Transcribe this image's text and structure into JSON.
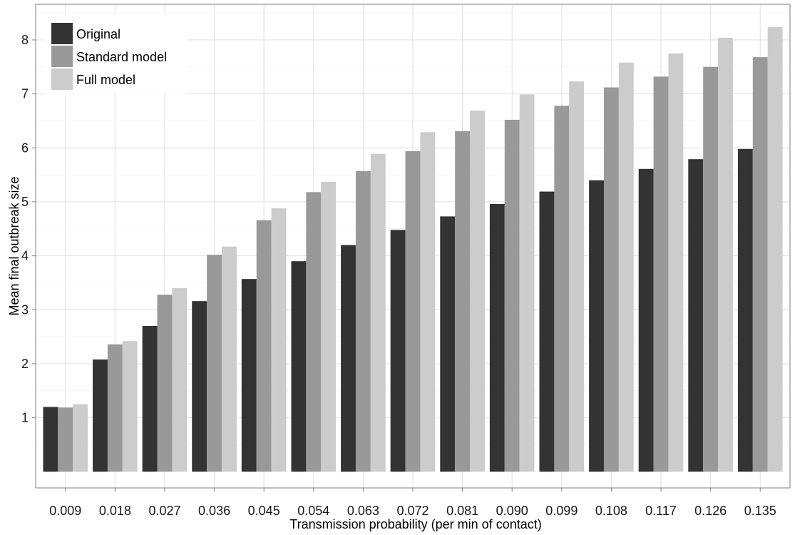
{
  "chart_data": {
    "type": "bar",
    "title": "",
    "xlabel": "Transmission probability (per min of contact)",
    "ylabel": "Mean final outbreak size",
    "categories": [
      "0.009",
      "0.018",
      "0.027",
      "0.036",
      "0.045",
      "0.054",
      "0.063",
      "0.072",
      "0.081",
      "0.090",
      "0.099",
      "0.108",
      "0.117",
      "0.126",
      "0.135"
    ],
    "series": [
      {
        "name": "Original",
        "color": "#333333",
        "values": [
          1.2,
          2.08,
          2.7,
          3.16,
          3.57,
          3.9,
          4.2,
          4.48,
          4.73,
          4.96,
          5.19,
          5.4,
          5.61,
          5.79,
          5.98
        ]
      },
      {
        "name": "Standard model",
        "color": "#999999",
        "values": [
          1.19,
          2.36,
          3.28,
          4.02,
          4.66,
          5.18,
          5.57,
          5.94,
          6.31,
          6.52,
          6.78,
          7.12,
          7.32,
          7.5,
          7.68
        ]
      },
      {
        "name": "Full model",
        "color": "#cccccc",
        "values": [
          1.25,
          2.42,
          3.4,
          4.17,
          4.88,
          5.37,
          5.89,
          6.29,
          6.69,
          6.99,
          7.23,
          7.58,
          7.75,
          8.04,
          8.24
        ]
      }
    ],
    "yticks": [
      1,
      2,
      3,
      4,
      5,
      6,
      7,
      8
    ],
    "ylim": [
      -0.3,
      8.66
    ],
    "bar_baseline": 0,
    "grid": true,
    "legend": "top-left"
  }
}
